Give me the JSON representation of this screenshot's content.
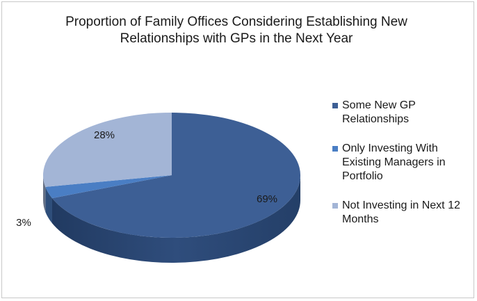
{
  "chart_data": {
    "type": "pie",
    "title": "Proportion of Family Offices Considering Establishing New Relationships with GPs in the Next Year",
    "categories": [
      "Some New GP Relationships",
      "Only Investing With Existing Managers in Portfolio",
      "Not Investing in Next 12 Months"
    ],
    "values": [
      69,
      3,
      28
    ],
    "value_labels": [
      "69%",
      "3%",
      "28%"
    ],
    "colors": [
      "#3d5f95",
      "#4a7ec4",
      "#a3b5d6"
    ],
    "legend_position": "right",
    "style": "3d"
  }
}
